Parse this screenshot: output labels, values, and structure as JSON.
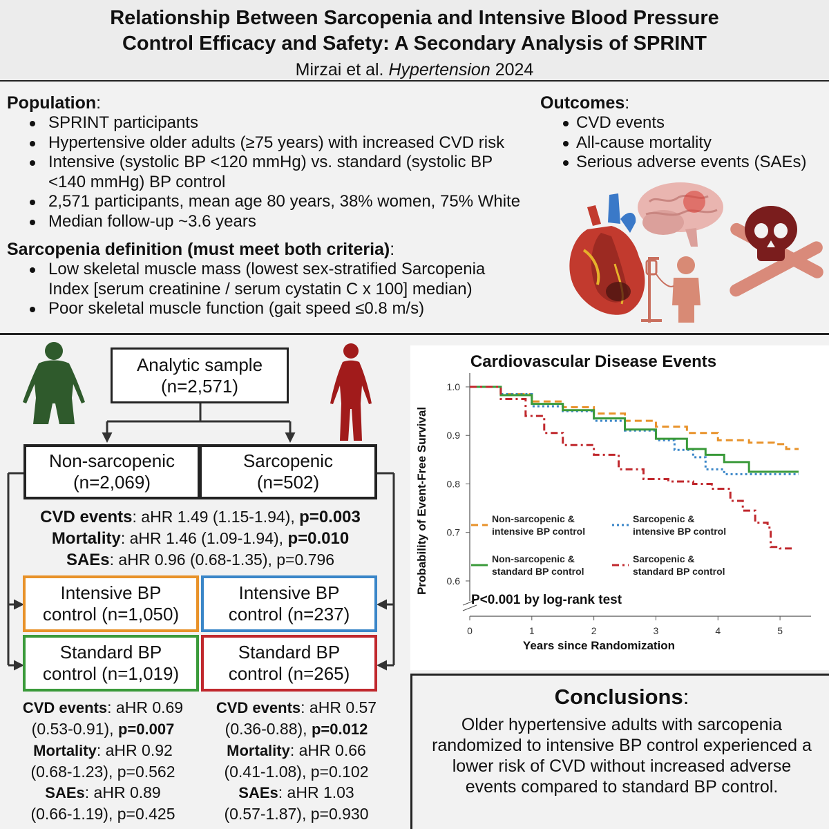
{
  "header": {
    "title_line1": "Relationship Between Sarcopenia and Intensive Blood Pressure",
    "title_line2": "Control Efficacy and Safety: A Secondary Analysis of SPRINT",
    "authors": "Mirzai et al.",
    "journal": "Hypertension",
    "year": "2024"
  },
  "population": {
    "heading": "Population",
    "items": [
      "SPRINT participants",
      "Hypertensive older adults (≥75 years) with increased CVD risk",
      "Intensive (systolic BP <120 mmHg) vs. standard (systolic BP <140 mmHg) BP control",
      "2,571 participants, mean age 80 years, 38% women, 75% White",
      "Median follow-up ~3.6 years"
    ]
  },
  "definition": {
    "heading": "Sarcopenia definition (must meet both criteria)",
    "items": [
      "Low skeletal muscle mass (lowest sex-stratified Sarcopenia Index [serum creatinine / serum cystatin C x 100] median)",
      "Poor skeletal muscle function (gait speed ≤0.8 m/s)"
    ]
  },
  "outcomes": {
    "heading": "Outcomes",
    "items": [
      "CVD events",
      "All-cause mortality",
      "Serious adverse events (SAEs)"
    ]
  },
  "flow": {
    "sample_label": "Analytic sample",
    "sample_n": "(n=2,571)",
    "nonsarc_label": "Non-sarcopenic",
    "nonsarc_n": "(n=2,069)",
    "sarc_label": "Sarcopenic",
    "sarc_n": "(n=502)",
    "main_stats": [
      {
        "label": "CVD events",
        "text": ": aHR 1.49 (1.15-1.94), ",
        "p": "p=0.003",
        "p_bold": true
      },
      {
        "label": "Mortality",
        "text": ": aHR 1.46 (1.09-1.94), ",
        "p": "p=0.010",
        "p_bold": true
      },
      {
        "label": "SAEs",
        "text": ": aHR 0.96 (0.68-1.35), ",
        "p": "p=0.796",
        "p_bold": false
      }
    ],
    "ns_int_l1": "Intensive BP",
    "ns_int_l2": "control (n=1,050)",
    "s_int_l1": "Intensive BP",
    "s_int_l2": "control (n=237)",
    "ns_std_l1": "Standard BP",
    "ns_std_l2": "control (n=1,019)",
    "s_std_l1": "Standard BP",
    "s_std_l2": "control (n=265)",
    "ns_stats": {
      "cvd_label": "CVD events",
      "cvd_hr": ": aHR 0.69",
      "cvd_ci": "(0.53-0.91), ",
      "cvd_p": "p=0.007",
      "mort_label": "Mortality",
      "mort_hr": ": aHR 0.92",
      "mort_ci": "(0.68-1.23), p=0.562",
      "sae_label": "SAEs",
      "sae_hr": ": aHR 0.89",
      "sae_ci": "(0.66-1.19), p=0.425"
    },
    "s_stats": {
      "cvd_label": "CVD events",
      "cvd_hr": ": aHR 0.57",
      "cvd_ci": "(0.36-0.88), ",
      "cvd_p": "p=0.012",
      "mort_label": "Mortality",
      "mort_hr": ": aHR 0.66",
      "mort_ci": "(0.41-1.08), p=0.102",
      "sae_label": "SAEs",
      "sae_hr": ": aHR 1.03",
      "sae_ci": "(0.57-1.87), p=0.930"
    }
  },
  "colors": {
    "intensive_nonsarc": "#e8922a",
    "intensive_sarc": "#3a86c8",
    "standard_nonsarc": "#3a9a3a",
    "standard_sarc": "#c0282d",
    "nonsarc_figure": "#2f5a2c",
    "sarc_figure": "#a11b1b"
  },
  "chart_data": {
    "type": "line",
    "title": "Cardiovascular Disease Events",
    "xlabel": "Years since Randomization",
    "ylabel": "Probability of Event-Free Survival",
    "x_ticks": [
      "0",
      "1",
      "2",
      "3",
      "4",
      "5"
    ],
    "y_ticks": [
      "1.0",
      "0.9",
      "0.8",
      "0.7",
      "0.6"
    ],
    "xlim": [
      0,
      5.5
    ],
    "ylim": [
      0.58,
      1.0
    ],
    "annotation": "P<0.001 by log-rank test",
    "series": [
      {
        "name": "Non-sarcopenic & intensive BP control",
        "color": "#e8922a",
        "dash": "dashed",
        "x": [
          0,
          0.5,
          1,
          1.5,
          2,
          2.5,
          3,
          3.5,
          4,
          4.5,
          4.9,
          5.1,
          5.3
        ],
        "y": [
          1.0,
          0.985,
          0.97,
          0.958,
          0.945,
          0.93,
          0.918,
          0.905,
          0.89,
          0.885,
          0.882,
          0.872,
          0.872
        ]
      },
      {
        "name": "Sarcopenic & intensive BP control",
        "color": "#3a86c8",
        "dash": "dotted",
        "x": [
          0,
          0.5,
          1,
          1.5,
          2,
          2.5,
          3,
          3.3,
          3.6,
          3.8,
          4.1,
          4.5,
          5,
          5.3
        ],
        "y": [
          1.0,
          0.985,
          0.96,
          0.95,
          0.93,
          0.91,
          0.89,
          0.87,
          0.855,
          0.83,
          0.82,
          0.82,
          0.82,
          0.82
        ]
      },
      {
        "name": "Non-sarcopenic & standard BP control",
        "color": "#3a9a3a",
        "dash": "solid",
        "x": [
          0,
          0.5,
          1,
          1.5,
          2,
          2.5,
          3,
          3.5,
          3.8,
          4.1,
          4.5,
          5,
          5.3
        ],
        "y": [
          1.0,
          0.983,
          0.965,
          0.952,
          0.935,
          0.912,
          0.893,
          0.872,
          0.86,
          0.845,
          0.825,
          0.825,
          0.825
        ]
      },
      {
        "name": "Sarcopenic & standard BP control",
        "color": "#c0282d",
        "dash": "dashdot",
        "x": [
          0,
          0.5,
          0.9,
          1.2,
          1.5,
          2,
          2.4,
          2.8,
          3.2,
          3.6,
          3.9,
          4.2,
          4.4,
          4.6,
          4.8,
          4.85,
          5.0,
          5.2
        ],
        "y": [
          1.0,
          0.975,
          0.94,
          0.905,
          0.88,
          0.86,
          0.83,
          0.81,
          0.805,
          0.8,
          0.79,
          0.765,
          0.745,
          0.72,
          0.71,
          0.67,
          0.667,
          0.667
        ]
      }
    ]
  },
  "conclusion": {
    "heading": "Conclusions",
    "text": "Older hypertensive adults with sarcopenia randomized to intensive BP control experienced a lower risk of CVD without increased adverse events compared to standard BP control."
  }
}
